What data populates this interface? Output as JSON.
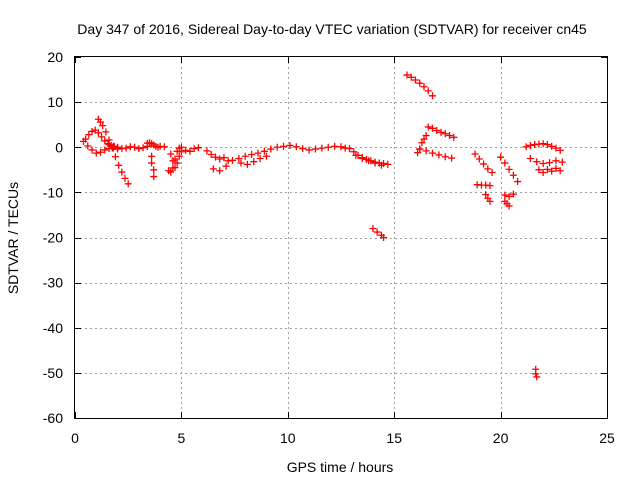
{
  "chart_data": {
    "type": "scatter",
    "title": "Day 347 of 2016, Sidereal Day-to-day VTEC variation (SDTVAR) for receiver cn45",
    "xlabel": "GPS time / hours",
    "ylabel": "SDTVAR / TECUs",
    "xlim": [
      0,
      25
    ],
    "ylim": [
      -60,
      20
    ],
    "xticks": [
      "0",
      "5",
      "10",
      "15",
      "20",
      "25"
    ],
    "yticks": [
      "20",
      "10",
      "0",
      "-10",
      "-20",
      "-30",
      "-40",
      "-50",
      "-60"
    ],
    "grid": true,
    "marker": "+",
    "marker_color": "#ff0000",
    "series": [
      {
        "name": "SDTVAR",
        "x": [
          0.4,
          0.5,
          0.65,
          0.8,
          0.95,
          1.1,
          1.25,
          1.4,
          1.55,
          1.7,
          1.85,
          2.0,
          0.6,
          0.8,
          1.0,
          1.2,
          1.4,
          1.6,
          1.8,
          2.0,
          1.1,
          1.2,
          1.3,
          1.45,
          1.6,
          1.75,
          1.9,
          2.05,
          2.2,
          2.35,
          2.5,
          1.6,
          1.8,
          2.0,
          2.2,
          2.4,
          2.6,
          2.8,
          3.0,
          3.2,
          3.4,
          3.4,
          3.5,
          3.6,
          3.7,
          3.8,
          3.9,
          4.0,
          4.2,
          3.6,
          3.6,
          3.7,
          3.7,
          4.4,
          4.5,
          4.6,
          4.7,
          4.8,
          4.9,
          5.0,
          5.2,
          5.4,
          5.6,
          5.8,
          4.5,
          4.6,
          4.7,
          4.8,
          4.9,
          5.0,
          6.2,
          6.4,
          6.6,
          6.8,
          7.0,
          7.2,
          6.5,
          6.8,
          7.1,
          7.4,
          7.7,
          8.0,
          8.3,
          8.6,
          8.9,
          9.2,
          9.5,
          9.8,
          10.1,
          10.4,
          10.7,
          11.0,
          11.3,
          11.6,
          11.9,
          12.2,
          12.5,
          12.7,
          7.8,
          8.1,
          8.4,
          8.7,
          9.0,
          12.9,
          13.1,
          13.3,
          13.5,
          13.7,
          13.9,
          14.1,
          14.3,
          14.5,
          14.7,
          13.2,
          13.5,
          13.8,
          14.1,
          14.4,
          14.0,
          14.2,
          14.4,
          14.5,
          15.6,
          15.8,
          16.0,
          16.2,
          16.4,
          16.6,
          16.8,
          16.1,
          16.2,
          16.3,
          16.4,
          16.5,
          16.6,
          16.8,
          17.0,
          17.2,
          17.4,
          17.6,
          17.8,
          16.2,
          16.5,
          16.8,
          17.1,
          17.4,
          17.7,
          18.8,
          19.0,
          19.2,
          19.4,
          19.6,
          18.9,
          19.1,
          19.3,
          19.5,
          19.3,
          19.4,
          19.5,
          20.0,
          20.2,
          20.4,
          20.6,
          20.8,
          20.2,
          20.4,
          20.6,
          20.2,
          20.3,
          20.4,
          21.2,
          21.4,
          21.6,
          21.8,
          22.0,
          22.2,
          22.4,
          22.6,
          22.8,
          21.4,
          21.7,
          22.0,
          22.3,
          22.6,
          22.9,
          21.8,
          22.0,
          22.2,
          22.4,
          22.6,
          22.8,
          21.65,
          21.65,
          21.7
        ],
        "y": [
          1.3,
          1.8,
          2.8,
          3.5,
          3.8,
          3.2,
          2.3,
          1.4,
          0.8,
          0.4,
          0.2,
          0.0,
          0.3,
          -0.6,
          -1.3,
          -1.1,
          -0.6,
          -0.3,
          -0.2,
          -0.4,
          6.2,
          5.6,
          4.8,
          3.4,
          1.6,
          -0.2,
          -2.1,
          -4.0,
          -5.5,
          -6.9,
          -8.1,
          0.6,
          0.2,
          -0.1,
          -0.3,
          -0.2,
          0.1,
          0.0,
          -0.3,
          -0.1,
          0.2,
          0.9,
          1.0,
          0.8,
          0.5,
          0.2,
          0.0,
          0.2,
          0.1,
          -2.0,
          -3.5,
          -5.0,
          -6.5,
          -5.2,
          -5.5,
          -4.6,
          -2.6,
          -0.9,
          -0.2,
          0.0,
          -0.7,
          -0.9,
          -0.3,
          -0.1,
          -1.5,
          -3.0,
          -4.5,
          -3.5,
          -2.0,
          -1.0,
          -0.8,
          -1.6,
          -2.2,
          -2.6,
          -2.3,
          -3.0,
          -4.8,
          -5.2,
          -4.2,
          -2.9,
          -2.5,
          -2.0,
          -1.6,
          -1.3,
          -0.9,
          -0.4,
          0.0,
          0.2,
          0.4,
          0.1,
          -0.3,
          -0.6,
          -0.4,
          -0.2,
          0.0,
          0.2,
          0.1,
          -0.2,
          -3.5,
          -3.8,
          -3.2,
          -2.5,
          -2.0,
          -0.3,
          -1.0,
          -1.8,
          -2.3,
          -2.7,
          -3.0,
          -3.3,
          -3.5,
          -3.6,
          -3.8,
          -1.8,
          -2.5,
          -3.0,
          -3.5,
          -4.0,
          -18.0,
          -18.8,
          -19.5,
          -20.0,
          16.0,
          15.5,
          14.9,
          14.2,
          13.4,
          12.5,
          11.4,
          -1.2,
          -0.4,
          1.0,
          1.8,
          2.6,
          4.5,
          4.2,
          3.7,
          3.3,
          3.0,
          2.6,
          2.2,
          -0.4,
          -0.8,
          -1.3,
          -1.7,
          -2.1,
          -2.4,
          -1.5,
          -2.6,
          -3.7,
          -4.8,
          -5.6,
          -8.3,
          -8.4,
          -8.4,
          -8.5,
          -10.5,
          -11.3,
          -12.0,
          -2.2,
          -3.5,
          -4.9,
          -6.2,
          -7.6,
          -10.6,
          -10.9,
          -10.4,
          -12.0,
          -12.5,
          -13.0,
          0.1,
          0.4,
          0.6,
          0.7,
          0.8,
          0.6,
          0.2,
          -0.2,
          -0.7,
          -2.5,
          -3.2,
          -3.6,
          -3.4,
          -3.0,
          -3.3,
          -5.0,
          -5.6,
          -4.9,
          -5.3,
          -4.7,
          -5.2,
          -49.2,
          -50.2,
          -50.9
        ]
      }
    ]
  }
}
